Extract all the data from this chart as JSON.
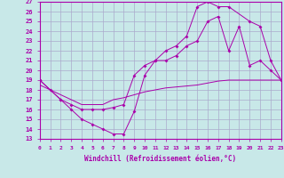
{
  "xlabel": "Windchill (Refroidissement éolien,°C)",
  "background_color": "#c8e8e8",
  "grid_color": "#aaaacc",
  "line_color": "#aa00aa",
  "xlim": [
    0,
    23
  ],
  "ylim": [
    13,
    27
  ],
  "xticks": [
    0,
    1,
    2,
    3,
    4,
    5,
    6,
    7,
    8,
    9,
    10,
    11,
    12,
    13,
    14,
    15,
    16,
    17,
    18,
    19,
    20,
    21,
    22,
    23
  ],
  "yticks": [
    13,
    14,
    15,
    16,
    17,
    18,
    19,
    20,
    21,
    22,
    23,
    24,
    25,
    26,
    27
  ],
  "line1_x": [
    0,
    1,
    2,
    3,
    4,
    5,
    6,
    7,
    8,
    9,
    10,
    11,
    12,
    13,
    14,
    15,
    16,
    17,
    18,
    19,
    20,
    21,
    22,
    23
  ],
  "line1_y": [
    19,
    18,
    17,
    16,
    15,
    14.5,
    14,
    13.5,
    13.5,
    15.8,
    19.5,
    21,
    21,
    21.5,
    22.5,
    23,
    25,
    25.5,
    22,
    24.5,
    20.5,
    21,
    20,
    19
  ],
  "line2_x": [
    0,
    2,
    3,
    4,
    5,
    6,
    7,
    8,
    9,
    10,
    11,
    12,
    13,
    14,
    15,
    16,
    17,
    18,
    20,
    21,
    22,
    23
  ],
  "line2_y": [
    19,
    17,
    16.5,
    16,
    16,
    16,
    16.2,
    16.5,
    19.5,
    20.5,
    21,
    22,
    22.5,
    23.5,
    26.5,
    27,
    26.5,
    26.5,
    25,
    24.5,
    21,
    19
  ],
  "line3_x": [
    0,
    1,
    2,
    3,
    4,
    5,
    6,
    7,
    8,
    9,
    10,
    11,
    12,
    13,
    14,
    15,
    16,
    17,
    18,
    19,
    20,
    21,
    22,
    23
  ],
  "line3_y": [
    18.5,
    18,
    17.5,
    17,
    16.5,
    16.5,
    16.5,
    17,
    17.2,
    17.5,
    17.8,
    18,
    18.2,
    18.3,
    18.4,
    18.5,
    18.7,
    18.9,
    19.0,
    19.0,
    19.0,
    19.0,
    19.0,
    19.0
  ]
}
